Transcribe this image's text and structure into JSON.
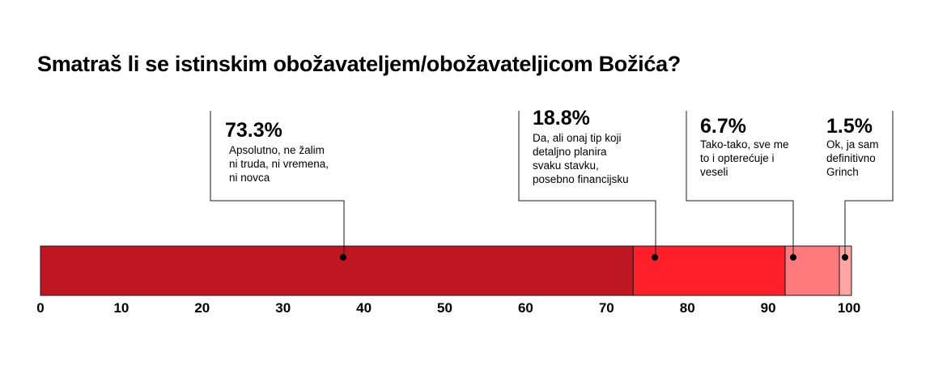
{
  "chart_data": {
    "type": "bar",
    "orientation": "horizontal-stacked",
    "title": "Smatraš li se istinskim obožavateljem/obožavateljicom Božića?",
    "xlim": [
      0,
      100
    ],
    "ticks": [
      "0",
      "10",
      "20",
      "30",
      "40",
      "50",
      "60",
      "70",
      "80",
      "90",
      "100"
    ],
    "grid": false,
    "segments": [
      {
        "value": 73.3,
        "value_label": "73.3%",
        "description": [
          "Apsolutno, ne žalim",
          "ni truda, ni vremena,",
          "ni novca"
        ],
        "color": "#be1622"
      },
      {
        "value": 18.8,
        "value_label": "18.8%",
        "description": [
          "Da, ali onaj tip koji",
          "detaljno planira",
          "svaku stavku,",
          "posebno financijsku"
        ],
        "color": "#fe1f2a"
      },
      {
        "value": 6.7,
        "value_label": "6.7%",
        "description": [
          "Tako-tako, sve me",
          "to i opterećuje i",
          "veseli"
        ],
        "color": "#ff7a7d"
      },
      {
        "value": 1.5,
        "value_label": "1.5%",
        "description": [
          "Ok, ja sam",
          "definitivno",
          "Grinch"
        ],
        "color": "#ffa5a4"
      }
    ]
  }
}
